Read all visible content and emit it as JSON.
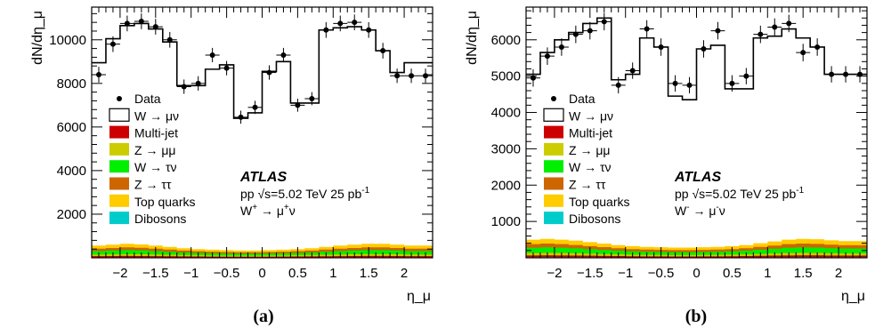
{
  "chart_data": [
    {
      "type": "histogram",
      "ylabel": "dN/dη_μ",
      "xlabel": "η_μ",
      "caption": "(a)",
      "xlim": [
        -2.4,
        2.4
      ],
      "ylim": [
        0,
        11500
      ],
      "xticks": [
        -2,
        -1.5,
        -1,
        -0.5,
        0,
        0.5,
        1,
        1.5,
        2
      ],
      "xtick_labels": [
        "−2",
        "−1.5",
        "−1",
        "−0.5",
        "0",
        "0.5",
        "1",
        "1.5",
        "2"
      ],
      "yticks": [
        2000,
        4000,
        6000,
        8000,
        10000
      ],
      "ytick_labels": [
        "2000",
        "4000",
        "6000",
        "8000",
        "10000"
      ],
      "bin_edges": [
        -2.4,
        -2.2,
        -2.0,
        -1.8,
        -1.6,
        -1.4,
        -1.2,
        -1.0,
        -0.8,
        -0.6,
        -0.4,
        -0.2,
        0.0,
        0.2,
        0.4,
        0.6,
        0.8,
        1.0,
        1.2,
        1.4,
        1.6,
        1.8,
        2.0,
        2.2,
        2.4
      ],
      "data": [
        8400,
        9800,
        10750,
        10850,
        10600,
        10000,
        7850,
        8000,
        9300,
        8700,
        6450,
        6900,
        8500,
        9300,
        7000,
        7300,
        10450,
        10750,
        10800,
        10450,
        9500,
        8350,
        8350,
        8350
      ],
      "data_err": [
        120,
        120,
        120,
        120,
        120,
        120,
        110,
        110,
        110,
        110,
        100,
        100,
        110,
        110,
        100,
        100,
        120,
        120,
        120,
        120,
        120,
        110,
        110,
        110
      ],
      "w_to_munu": [
        8950,
        10050,
        10650,
        10750,
        10500,
        9900,
        7900,
        7900,
        8650,
        8850,
        6400,
        6650,
        8550,
        9000,
        7100,
        7100,
        10450,
        10550,
        10600,
        10450,
        9500,
        8500,
        8950,
        8950
      ],
      "stack_total": [
        560,
        600,
        640,
        610,
        560,
        500,
        440,
        400,
        370,
        350,
        330,
        330,
        350,
        370,
        400,
        440,
        500,
        560,
        600,
        640,
        640,
        600,
        560,
        560
      ],
      "lower_stack_total": [
        150,
        160,
        170,
        165,
        155,
        145,
        130,
        120,
        112,
        106,
        100,
        100,
        106,
        112,
        120,
        130,
        145,
        155,
        165,
        170,
        170,
        165,
        155,
        150
      ],
      "legend": [
        "Data",
        "W → μν",
        "Multi-jet",
        "Z → μμ",
        "W → τν",
        "Z → ττ",
        "Top quarks",
        "Dibosons"
      ],
      "atlas_label": "ATLAS",
      "info_text": "pp  √s=5.02 TeV 25 pb",
      "info_sup": "-1",
      "channel_text": "W",
      "channel_sup": "+",
      "channel_tail": " → μ",
      "channel_sup2": "+",
      "channel_end": "ν"
    },
    {
      "type": "histogram",
      "ylabel": "dN/dη_μ",
      "xlabel": "η_μ",
      "caption": "(b)",
      "xlim": [
        -2.4,
        2.4
      ],
      "ylim": [
        0,
        6900
      ],
      "xticks": [
        -2,
        -1.5,
        -1,
        -0.5,
        0,
        0.5,
        1,
        1.5,
        2
      ],
      "xtick_labels": [
        "−2",
        "−1.5",
        "−1",
        "−0.5",
        "0",
        "0.5",
        "1",
        "1.5",
        "2"
      ],
      "yticks": [
        1000,
        2000,
        3000,
        4000,
        5000,
        6000
      ],
      "ytick_labels": [
        "1000",
        "2000",
        "3000",
        "4000",
        "5000",
        "6000"
      ],
      "bin_edges": [
        -2.4,
        -2.2,
        -2.0,
        -1.8,
        -1.6,
        -1.4,
        -1.2,
        -1.0,
        -0.8,
        -0.6,
        -0.4,
        -0.2,
        0.0,
        0.2,
        0.4,
        0.6,
        0.8,
        1.0,
        1.2,
        1.4,
        1.6,
        1.8,
        2.0,
        2.2,
        2.4
      ],
      "data": [
        4950,
        5550,
        5800,
        6150,
        6250,
        6500,
        4750,
        5150,
        6300,
        5800,
        4800,
        4750,
        5750,
        6250,
        4800,
        5000,
        6150,
        6350,
        6450,
        5650,
        5800,
        5050,
        5050,
        5050
      ],
      "data_err": [
        80,
        80,
        80,
        80,
        80,
        80,
        75,
        75,
        80,
        80,
        75,
        75,
        80,
        80,
        75,
        75,
        80,
        80,
        80,
        80,
        80,
        75,
        75,
        75
      ],
      "w_to_munu": [
        5050,
        5650,
        6000,
        6200,
        6450,
        6600,
        4900,
        5050,
        6050,
        5800,
        4450,
        4350,
        5750,
        5850,
        4650,
        4650,
        6050,
        6100,
        6300,
        6050,
        5800,
        5050,
        5050,
        5050
      ],
      "stack_total": [
        500,
        520,
        500,
        470,
        430,
        390,
        350,
        320,
        300,
        290,
        280,
        280,
        290,
        300,
        320,
        350,
        400,
        450,
        500,
        520,
        510,
        480,
        460,
        460
      ],
      "lower_stack_total": [
        130,
        135,
        130,
        125,
        115,
        105,
        95,
        88,
        82,
        78,
        75,
        75,
        78,
        82,
        88,
        95,
        108,
        120,
        130,
        135,
        132,
        125,
        120,
        120
      ],
      "legend": [
        "Data",
        "W → μν",
        "Multi-jet",
        "Z → μμ",
        "W → τν",
        "Z → ττ",
        "Top quarks",
        "Dibosons"
      ],
      "atlas_label": "ATLAS",
      "info_text": "pp  √s=5.02 TeV 25 pb",
      "info_sup": "-1",
      "channel_text": "W",
      "channel_sup": "-",
      "channel_tail": " → μ",
      "channel_sup2": "-",
      "channel_end": "ν"
    }
  ],
  "colors": {
    "data": "#000000",
    "w_to_munu": "#ffffff",
    "multijet": "#cc0000",
    "z_mumu": "#cccc00",
    "w_taunu": "#00ee00",
    "z_tautau": "#cc6600",
    "top": "#ffcc00",
    "dibosons": "#00cccc"
  }
}
